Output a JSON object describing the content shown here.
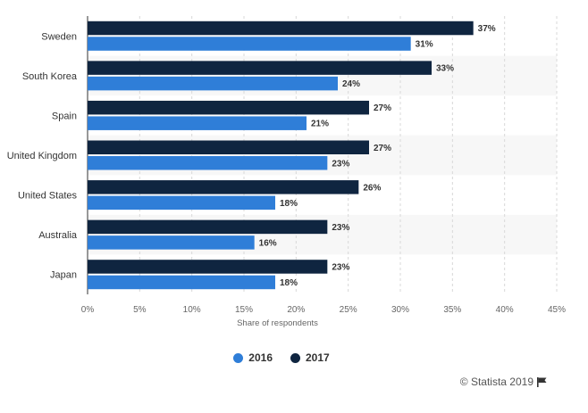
{
  "chart_data": {
    "type": "bar",
    "orientation": "horizontal",
    "categories": [
      "Sweden",
      "South Korea",
      "Spain",
      "United Kingdom",
      "United States",
      "Australia",
      "Japan"
    ],
    "series": [
      {
        "name": "2017",
        "color": "#0f2540",
        "values": [
          37,
          33,
          27,
          27,
          26,
          23,
          23
        ]
      },
      {
        "name": "2016",
        "color": "#2f7ed8",
        "values": [
          31,
          24,
          21,
          23,
          18,
          16,
          18
        ]
      }
    ],
    "xlabel": "Share of respondents",
    "xlim": [
      0,
      45
    ],
    "xticks": [
      0,
      5,
      10,
      15,
      20,
      25,
      30,
      35,
      40,
      45
    ],
    "tick_suffix": "%",
    "grid": true,
    "legend_position": "bottom-center",
    "legend": [
      {
        "label": "2016",
        "color": "#2f7ed8"
      },
      {
        "label": "2017",
        "color": "#0f2540"
      }
    ]
  },
  "credits": {
    "text": "© Statista 2019",
    "icon": "flag-icon"
  }
}
